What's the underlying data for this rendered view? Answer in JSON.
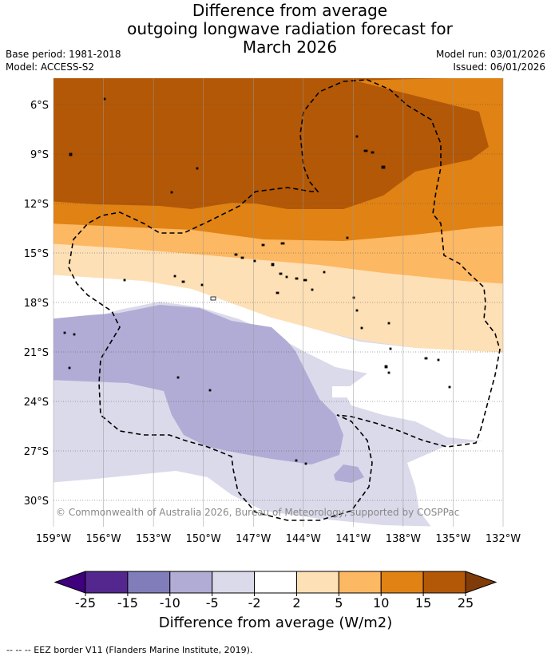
{
  "header": {
    "title_lines": [
      "Difference from average",
      "outgoing longwave radiation forecast for",
      "March 2026"
    ],
    "base_period": "Base period: 1981-2018",
    "model": "Model: ACCESS-S2",
    "model_run": "Model run: 03/01/2026",
    "issued": "Issued: 06/01/2026"
  },
  "map": {
    "lon_labels": [
      "159°W",
      "156°W",
      "153°W",
      "150°W",
      "147°W",
      "144°W",
      "141°W",
      "138°W",
      "135°W",
      "132°W"
    ],
    "lat_labels": [
      "6°S",
      "9°S",
      "12°S",
      "15°S",
      "18°S",
      "21°S",
      "24°S",
      "27°S",
      "30°S"
    ],
    "copyright": "© Commonwealth of Australia 2026, Bureau of Meteorology, supported by COSPPac"
  },
  "colorbar": {
    "ticks": [
      "-25",
      "-15",
      "-10",
      "-5",
      "-2",
      "2",
      "5",
      "10",
      "15",
      "25"
    ],
    "colors": [
      "#3f007d",
      "#54278f",
      "#807dba",
      "#b1acd5",
      "#dadaeb",
      "#ffffff",
      "#fee0b6",
      "#fdb863",
      "#e08214",
      "#b35806",
      "#7f3b08"
    ],
    "label": "Difference from average (W/m2)"
  },
  "legend": {
    "eez_line": "--  --  -- EEZ border V11 (Flanders Marine Institute, 2019)."
  }
}
